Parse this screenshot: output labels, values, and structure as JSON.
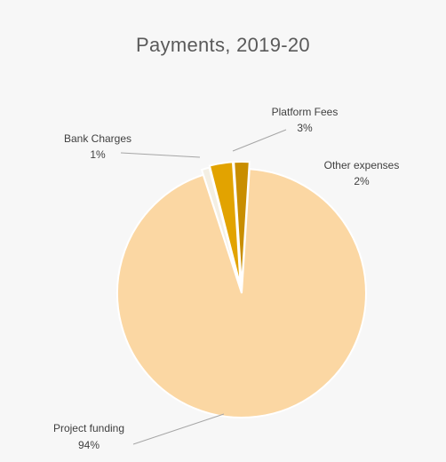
{
  "chart_data": {
    "type": "pie",
    "title": "Payments, 2019-20",
    "slices": [
      {
        "name": "Bank Charges",
        "value": 1,
        "label": "1%",
        "color": "#f4efe3"
      },
      {
        "name": "Platform Fees",
        "value": 3,
        "label": "3%",
        "color": "#e2a300"
      },
      {
        "name": "Other expenses",
        "value": 2,
        "label": "2%",
        "color": "#c98e00"
      },
      {
        "name": "Project funding",
        "value": 94,
        "label": "94%",
        "color": "#fbd7a3"
      }
    ],
    "legend": "none",
    "data_labels": "outside with leader lines"
  }
}
